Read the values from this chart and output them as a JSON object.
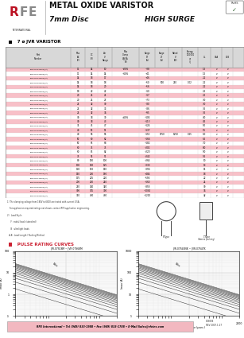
{
  "bg_color": "#ffffff",
  "header_bg": "#f2b8c0",
  "title_main": "METAL OXIDE VARISTOR",
  "title_sub": "7mm Disc",
  "title_right": "HIGH SURGE",
  "section_title": "  7 ø JVR VARISTOR",
  "pulse_title": "  PULSE RATING CURVES",
  "table_rows": [
    [
      "JVR07S110M05(J/A)",
      "11",
      "14",
      "10",
      "+20%",
      "~38",
      "",
      "",
      "",
      "1.5",
      "v",
      "v",
      ""
    ],
    [
      "JVR07S140M05(J/A)",
      "11",
      "14",
      "14",
      "+10%",
      "~41",
      "",
      "",
      "",
      "1.5",
      "v",
      "v",
      ""
    ],
    [
      "JVR07S200M05(J/A)",
      "14",
      "18",
      "17",
      "",
      "~46",
      "",
      "",
      "",
      "2.2",
      "v",
      "v",
      ""
    ],
    [
      "JVR07S220M05(J/A)",
      "14",
      "18",
      "18",
      "",
      "~50",
      "500",
      "250",
      "0.02",
      "2.2",
      "v",
      "v",
      ""
    ],
    [
      "JVR07S250M05(J/A)",
      "14",
      "18",
      "20",
      "",
      "~56",
      "",
      "",
      "",
      "2.2",
      "v",
      "v",
      ""
    ],
    [
      "JVR07S270M05(J/A)",
      "18",
      "22",
      "22",
      "",
      "~60",
      "",
      "",
      "",
      "2.5",
      "v",
      "v",
      ""
    ],
    [
      "JVR07S300M05(J/A)",
      "20",
      "25",
      "25",
      "",
      "~67",
      "",
      "",
      "",
      "2.5",
      "v",
      "v",
      ""
    ],
    [
      "JVR07S330M05(J/A)",
      "20",
      "25",
      "27",
      "",
      "~73",
      "",
      "",
      "",
      "3.0",
      "v",
      "v",
      ""
    ],
    [
      "JVR07S360M05(J/A)",
      "25",
      "32",
      "30",
      "",
      "~80",
      "",
      "",
      "",
      "3.0",
      "v",
      "v",
      ""
    ],
    [
      "JVR07S390M05(J/A)",
      "25",
      "32",
      "33",
      "",
      "~86",
      "",
      "",
      "",
      "3.5",
      "v",
      "v",
      ""
    ],
    [
      "JVR07S430M05(J/A)",
      "25",
      "32",
      "36",
      "",
      "~95",
      "",
      "",
      "",
      "3.5",
      "v",
      "v",
      ""
    ],
    [
      "JVR07S470M05(J/A)",
      "30",
      "38",
      "39",
      "±10%",
      "~104",
      "",
      "",
      "",
      "4.0",
      "v",
      "v",
      ""
    ],
    [
      "JVR07S510M05(J/A)",
      "30",
      "38",
      "43",
      "",
      "~113",
      "",
      "",
      "",
      "4.5",
      "v",
      "v",
      ""
    ],
    [
      "JVR07S560M05(J/A)",
      "35",
      "45",
      "47",
      "",
      "~124",
      "",
      "",
      "",
      "5.0",
      "v",
      "v",
      ""
    ],
    [
      "JVR07S620M05(J/A)",
      "40",
      "50",
      "51",
      "",
      "~137",
      "",
      "",
      "",
      "5.5",
      "v",
      "v",
      ""
    ],
    [
      "JVR07S680M05(J/A)",
      "40",
      "56",
      "56",
      "",
      "~150",
      "1750",
      "1250",
      "0.25",
      "6.0",
      "v",
      "v",
      ""
    ],
    [
      "JVR07S750M05(J/A)",
      "50",
      "60",
      "62",
      "",
      "~166",
      "",
      "",
      "",
      "6.5",
      "v",
      "v",
      ""
    ],
    [
      "JVR07S820M05(J/A)",
      "50",
      "65",
      "68",
      "",
      "~182",
      "",
      "",
      "",
      "7.0",
      "v",
      "v",
      ""
    ],
    [
      "JVR07S911M05(J/A)",
      "60",
      "75",
      "75",
      "",
      "~202",
      "",
      "",
      "",
      "8.0",
      "v",
      "v",
      ""
    ],
    [
      "JVR07S102M05(J/A)",
      "60",
      "85",
      "82",
      "",
      "~220",
      "",
      "",
      "",
      "9.0",
      "v",
      "v",
      ""
    ],
    [
      "JVR07S112M05(J/A)",
      "75",
      "95",
      "91",
      "",
      "~242",
      "",
      "",
      "",
      "9.5",
      "v",
      "v",
      ""
    ],
    [
      "JVR07S122M05(J/A)",
      "80",
      "100",
      "100",
      "",
      "~264",
      "",
      "",
      "",
      "10",
      "v",
      "v",
      ""
    ],
    [
      "JVR07S152M05(J/A)",
      "100",
      "130",
      "125",
      "",
      "~330",
      "",
      "",
      "",
      "13",
      "v",
      "v",
      ""
    ],
    [
      "JVR07S182M05(J/A)",
      "130",
      "170",
      "150",
      "",
      "~396",
      "",
      "",
      "",
      "15",
      "v",
      "v",
      ""
    ],
    [
      "JVR07S222M05(J/A)",
      "150",
      "200",
      "180",
      "",
      "~484",
      "",
      "",
      "",
      "18",
      "v",
      "v",
      ""
    ],
    [
      "JVR07S272M05(J/A)",
      "175",
      "225",
      "220",
      "",
      "~594",
      "",
      "",
      "",
      "22",
      "v",
      "v",
      ""
    ],
    [
      "JVR07S302M05(J/A)",
      "200",
      "250",
      "240",
      "",
      "~660",
      "",
      "",
      "",
      "24",
      "v",
      "v",
      ""
    ],
    [
      "JVR07S392M05(J/A)",
      "250",
      "320",
      "320",
      "",
      "~858",
      "",
      "",
      "",
      "30",
      "v",
      "v",
      ""
    ],
    [
      "JVR07S472M05(J/A)",
      "300",
      "385",
      "390",
      "",
      "~1034",
      "",
      "",
      "",
      "36",
      "v",
      "v",
      ""
    ],
    [
      "JVR07S562M05(J/A)",
      "350",
      "460",
      "460",
      "",
      "~1210",
      "",
      "",
      "",
      "42",
      "v",
      "v",
      ""
    ]
  ],
  "row_colors": [
    "#f8c0c8",
    "#ffffff"
  ],
  "footer_text": "RFE International • Tel (949) 833-1988 • Fax (949) 833-1788 • E-Mail Sales@rfeinc.com",
  "footer_right": "C59804\nREV 2007.1.27",
  "notes_1": "1) The clamping voltage from 180V to 680V are tested with current 0.5A.",
  "notes_2": "    For application required ratings not shown, contact RFE application engineering.",
  "notes_3": "2)   Lead Style:",
  "notes_4": "      F : radial leads (standard)",
  "notes_5": "      B : ultralight leads",
  "notes_6": "   A,B : Lead Length / Packing Method",
  "graph1_title": "JVR-07S18M ~ JVR-07S68M",
  "graph2_title": "JVR-07S43NK ~ JVR-07S47K",
  "graph_xlabel": "Rectangular Wave (μsec.)",
  "graph1_ylabel": "Imax (A)",
  "graph2_ylabel": "Imax (A)"
}
